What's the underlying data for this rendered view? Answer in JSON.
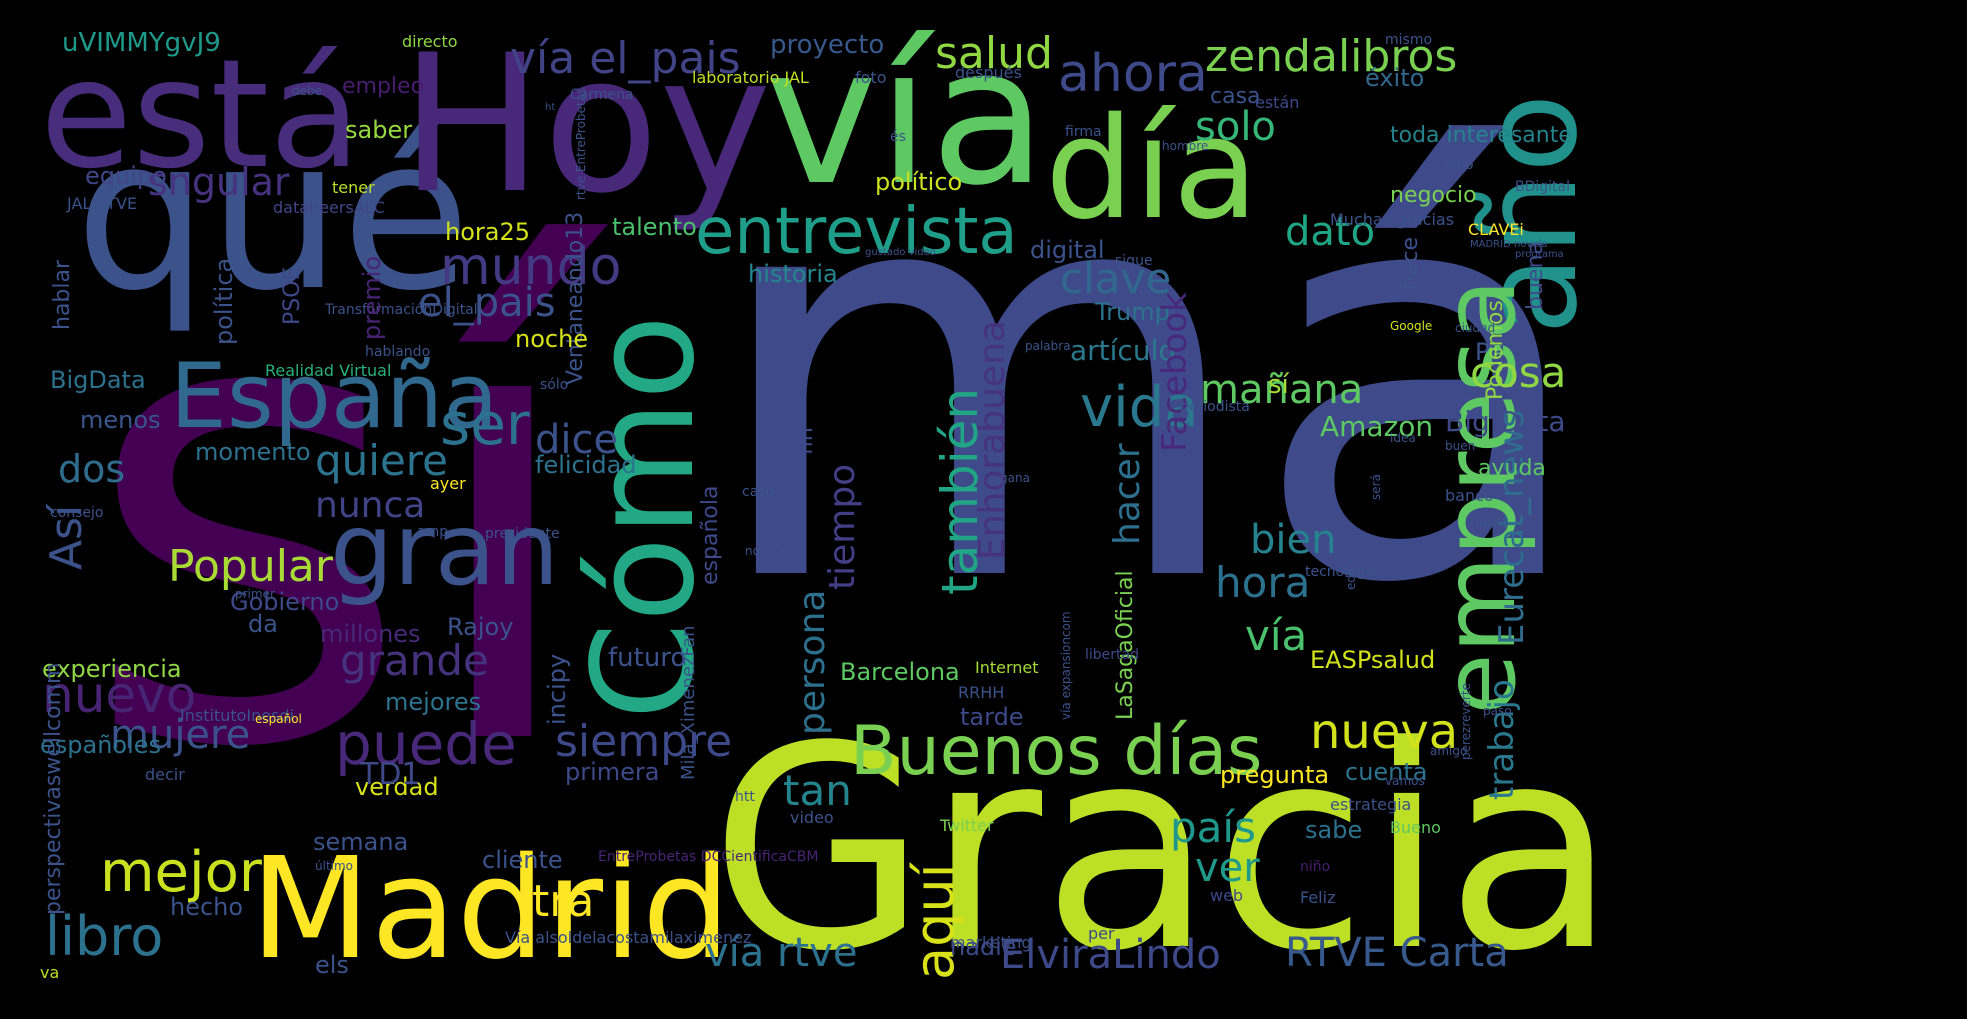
{
  "words": [
    {
      "t": "má",
      "c": "#3e4a89"
    },
    {
      "t": "sí",
      "c": "#440154"
    },
    {
      "t": "Gracia",
      "c": "#bddf26"
    },
    {
      "t": "qué",
      "c": "#3b528b"
    },
    {
      "t": "Hoy",
      "c": "#482878"
    },
    {
      "t": "vía",
      "c": "#5ec962"
    },
    {
      "t": "está",
      "c": "#472d7b"
    },
    {
      "t": "día",
      "c": "#7ad151"
    },
    {
      "t": "año",
      "c": "#21918c"
    },
    {
      "t": "Cómo",
      "c": "#22a884"
    },
    {
      "t": "Madrid",
      "c": "#fde725"
    },
    {
      "t": "empresa",
      "c": "#5ec962"
    },
    {
      "t": "España",
      "c": "#31688e"
    },
    {
      "t": "gran",
      "c": "#3b528b"
    },
    {
      "t": "Buenos días",
      "c": "#7ad151"
    },
    {
      "t": "entrevista",
      "c": "#1f9e89"
    },
    {
      "t": "ahora",
      "c": "#3e4a89"
    },
    {
      "t": "vía el_pais",
      "c": "#414487"
    },
    {
      "t": "zendalibros",
      "c": "#7ad151"
    },
    {
      "t": "salud",
      "c": "#90d743"
    },
    {
      "t": "solo",
      "c": "#35b779"
    },
    {
      "t": "mundo",
      "c": "#443983"
    },
    {
      "t": "sngular",
      "c": "#46327e"
    },
    {
      "t": "ser",
      "c": "#2c728e"
    },
    {
      "t": "vida",
      "c": "#2a788e"
    },
    {
      "t": "mañana",
      "c": "#5ec962"
    },
    {
      "t": "dato",
      "c": "#21a685"
    },
    {
      "t": "clave",
      "c": "#31688e"
    },
    {
      "t": "el_pais",
      "c": "#3b528b"
    },
    {
      "t": "nuevo",
      "c": "#482475"
    },
    {
      "t": "puede",
      "c": "#482878"
    },
    {
      "t": "mejor",
      "c": "#cae11f"
    },
    {
      "t": "libro",
      "c": "#2c728e"
    },
    {
      "t": "nueva",
      "c": "#d2e21b"
    },
    {
      "t": "Popular",
      "c": "#a8db34"
    },
    {
      "t": "grande",
      "c": "#46337e"
    },
    {
      "t": "siempre",
      "c": "#3e4989"
    },
    {
      "t": "tra",
      "c": "#fde725"
    },
    {
      "t": "quiere",
      "c": "#2c738e"
    },
    {
      "t": "dice",
      "c": "#3b528b"
    },
    {
      "t": "nunca",
      "c": "#414487"
    },
    {
      "t": "mujere",
      "c": "#3b528b"
    },
    {
      "t": "bien",
      "c": "#26828e"
    },
    {
      "t": "hora",
      "c": "#2c728e"
    },
    {
      "t": "vía",
      "c": "#4ac16d"
    },
    {
      "t": "país",
      "c": "#1f988b"
    },
    {
      "t": "ver",
      "c": "#1f9a8a"
    },
    {
      "t": "tan",
      "c": "#25858e"
    },
    {
      "t": "cosa",
      "c": "#90d743"
    },
    {
      "t": "vía rtve",
      "c": "#2c728e"
    },
    {
      "t": "RTVE Carta",
      "c": "#38598c"
    },
    {
      "t": "ElviraLindo",
      "c": "#3e4989"
    },
    {
      "t": "aquí",
      "c": "#d8e219"
    },
    {
      "t": "también",
      "c": "#21a685"
    },
    {
      "t": "hacer",
      "c": "#2d708e"
    },
    {
      "t": "Enhorabuena",
      "c": "#46337e"
    },
    {
      "t": "persona",
      "c": "#2d708e"
    },
    {
      "t": "tiempo",
      "c": "#433e85"
    },
    {
      "t": "trabajo",
      "c": "#2a788e"
    },
    {
      "t": "Eurecat_news",
      "c": "#2f6c8e"
    },
    {
      "t": "Así",
      "c": "#3b528b"
    },
    {
      "t": "dos",
      "c": "#2f6c8e"
    },
    {
      "t": "proyecto",
      "c": "#38598c"
    },
    {
      "t": "uVIMMYgvJ9",
      "c": "#1f9a8a"
    },
    {
      "t": "directo",
      "c": "#90d743"
    },
    {
      "t": "empleo",
      "c": "#481d6f"
    },
    {
      "t": "saber",
      "c": "#95d840"
    },
    {
      "t": "equipo",
      "c": "#404688"
    },
    {
      "t": "JAL RTVE",
      "c": "#3b528b"
    },
    {
      "t": "databeersALC",
      "c": "#404688"
    },
    {
      "t": "tener",
      "c": "#bddf26"
    },
    {
      "t": "política",
      "c": "#3b528b"
    },
    {
      "t": "PSOE",
      "c": "#3e4989"
    },
    {
      "t": "premio",
      "c": "#482475"
    },
    {
      "t": "BigData",
      "c": "#2c728e"
    },
    {
      "t": "hablar",
      "c": "#3b528b"
    },
    {
      "t": "menos",
      "c": "#39568c"
    },
    {
      "t": "momento",
      "c": "#2c728e"
    },
    {
      "t": "consejo",
      "c": "#3b528b"
    },
    {
      "t": "Realidad Virtual",
      "c": "#29af7f"
    },
    {
      "t": "hora25",
      "c": "#d2e21b"
    },
    {
      "t": "talento",
      "c": "#4ac16d"
    },
    {
      "t": "historia",
      "c": "#24868e"
    },
    {
      "t": "incipy",
      "c": "#d8e219"
    },
    {
      "t": "Ventaneando13",
      "c": "#2c738e"
    },
    {
      "t": "noche",
      "c": "#cae11f"
    },
    {
      "t": "felicidad",
      "c": "#c2df23"
    },
    {
      "t": "político",
      "c": "#3b528b"
    },
    {
      "t": "laboratorio JAL",
      "c": "#3b528b"
    },
    {
      "t": "foto",
      "c": "#3b528b"
    },
    {
      "t": "después",
      "c": "#3e4989"
    },
    {
      "t": "casa",
      "c": "#31688e"
    },
    {
      "t": "están",
      "c": "#25838e"
    },
    {
      "t": "éxito",
      "c": "#7ad151"
    },
    {
      "t": "toda interesante",
      "c": "#3b528b"
    },
    {
      "t": "negocio",
      "c": "#2c728e"
    },
    {
      "t": "digital",
      "c": "#2a788e"
    },
    {
      "t": "Trump",
      "c": "#a5db36"
    },
    {
      "t": "artículo",
      "c": "#5ec962"
    },
    {
      "t": "sí",
      "c": "#482878"
    },
    {
      "t": "Amazon",
      "c": "#3b528b"
    },
    {
      "t": "Facebook",
      "c": "#3e4a89"
    },
    {
      "t": "PP",
      "c": "#5ec962"
    },
    {
      "t": "Big Data",
      "c": "#fde725"
    },
    {
      "t": "ayuda",
      "c": "#3b528b"
    },
    {
      "t": "CLAVEi",
      "c": "#3b528b"
    },
    {
      "t": "Muchas gracias",
      "c": "#3e4a89"
    },
    {
      "t": "hace",
      "c": "#90d743"
    },
    {
      "t": "buena",
      "c": "#d2e21b"
    },
    {
      "t": "Podemos",
      "c": "#2c728e"
    },
    {
      "t": "EASPsalud",
      "c": "#fde725"
    },
    {
      "t": "cuenta",
      "c": "#2c728e"
    },
    {
      "t": "pregunta",
      "c": "#3b528b"
    },
    {
      "t": "sabe",
      "c": "#5ec962"
    },
    {
      "t": "estrategia",
      "c": "#3e4989"
    },
    {
      "t": "Bueno",
      "c": "#3b528b"
    },
    {
      "t": "web",
      "c": "#481d6f"
    },
    {
      "t": "Feliz",
      "c": "#3e4989"
    },
    {
      "t": "niño",
      "c": "#3b528b"
    },
    {
      "t": "per",
      "c": "#3e4989"
    },
    {
      "t": "marketing",
      "c": "#7ad151"
    },
    {
      "t": "nadie",
      "c": "#3b528b"
    },
    {
      "t": "Twitter",
      "c": "#3e4989"
    },
    {
      "t": "video",
      "c": "#3b528b"
    },
    {
      "t": "Gobierno",
      "c": "#482878"
    },
    {
      "t": "da",
      "c": "#3b528b"
    },
    {
      "t": "millones",
      "c": "#2c728e"
    },
    {
      "t": "Rajoy",
      "c": "#3b528b"
    },
    {
      "t": "mejores",
      "c": "#3e4989"
    },
    {
      "t": "futuro",
      "c": "#d8e219"
    },
    {
      "t": "primera",
      "c": "#3b528b"
    },
    {
      "t": "verdad",
      "c": "#3b528b"
    },
    {
      "t": "semana",
      "c": "#3b528b"
    },
    {
      "t": "cliente",
      "c": "#90d743"
    },
    {
      "t": "hecho",
      "c": "#2c728e"
    },
    {
      "t": "experiencia",
      "c": "#3b528b"
    },
    {
      "t": "españoles",
      "c": "#3b528b"
    },
    {
      "t": "decir",
      "c": "#3b528b"
    },
    {
      "t": "perspectivaswellcomm",
      "c": "#fde725"
    },
    {
      "t": "InstitutoInesdi",
      "c": "#3b528b"
    },
    {
      "t": "español",
      "c": "#482475"
    },
    {
      "t": "último",
      "c": "#3b528b"
    },
    {
      "t": "EntreProbetas DCCientificaCBM",
      "c": "#bddf26"
    },
    {
      "t": "Vía alsoldelacostamilaximenez",
      "c": "#3b528b"
    },
    {
      "t": "va",
      "c": "#3e4989"
    },
    {
      "t": "els",
      "c": "#5ec962"
    },
    {
      "t": "TD1",
      "c": "#3e4989"
    },
    {
      "t": "Barcelona",
      "c": "#3b528b"
    },
    {
      "t": "tarde",
      "c": "#a5db36"
    },
    {
      "t": "RRHH",
      "c": "#3e4989"
    },
    {
      "t": "Internet",
      "c": "#3b528b"
    },
    {
      "t": "libertad",
      "c": "#3b528b"
    },
    {
      "t": "tecnología",
      "c": "#3b528b"
    },
    {
      "t": "banco",
      "c": "#3b528b"
    },
    {
      "t": "buen",
      "c": "#3b528b"
    },
    {
      "t": "ciudad",
      "c": "#3b528b"
    },
    {
      "t": "habla",
      "c": "#3b528b"
    },
    {
      "t": "amigo",
      "c": "#3b528b"
    },
    {
      "t": "vamos",
      "c": "#3b528b"
    },
    {
      "t": "idea",
      "c": "#3b528b"
    },
    {
      "t": "paso",
      "c": "#3b528b"
    },
    {
      "t": "periodista",
      "c": "#d2e21b"
    },
    {
      "t": "gana",
      "c": "#3b528b"
    },
    {
      "t": "Google",
      "c": "#3e4989"
    },
    {
      "t": "palabra",
      "c": "#3b528b"
    },
    {
      "t": "blog",
      "c": "#3b528b"
    },
    {
      "t": "noticia",
      "c": "#3b528b"
    },
    {
      "t": "caso",
      "c": "#3b528b"
    },
    {
      "t": "presidente",
      "c": "#fde725"
    },
    {
      "t": "amp",
      "c": "#3b528b"
    },
    {
      "t": "ayer",
      "c": "#3b528b"
    },
    {
      "t": "primer",
      "c": "#3b528b"
    },
    {
      "t": "hablando",
      "c": "#3b528b"
    },
    {
      "t": "TransformaciónDigital",
      "c": "#3b528b"
    },
    {
      "t": "sólo",
      "c": "#3b528b"
    },
    {
      "t": "gustado video",
      "c": "#3b528b"
    },
    {
      "t": "sigue",
      "c": "#3b528b"
    },
    {
      "t": "hombre",
      "c": "#3b528b"
    },
    {
      "t": "firma",
      "c": "#3b528b"
    },
    {
      "t": "és",
      "c": "#3b528b"
    },
    {
      "t": "ht",
      "c": "#3b528b"
    },
    {
      "t": "Carmena",
      "c": "#3b528b"
    },
    {
      "t": "debe",
      "c": "#3b528b"
    },
    {
      "t": "mismo",
      "c": "#3b528b"
    },
    {
      "t": "sino",
      "c": "#3b528b"
    },
    {
      "t": "española",
      "c": "#3b528b"
    },
    {
      "t": "fin",
      "c": "#3b528b"
    },
    {
      "t": "LaSagaOficial",
      "c": "#3b528b"
    },
    {
      "t": "BDigital",
      "c": "#3b528b"
    },
    {
      "t": "MADRID novela",
      "c": "#3e4989"
    },
    {
      "t": "programa",
      "c": "#3e4989"
    },
    {
      "t": "Mila_XimenezFan",
      "c": "#7ad151"
    },
    {
      "t": "rtve EntreProbetas",
      "c": "#3b528b"
    },
    {
      "t": "edición",
      "c": "#3b528b"
    },
    {
      "t": "será",
      "c": "#3b528b"
    },
    {
      "t": "vía expansioncom",
      "c": "#3b528b"
    },
    {
      "t": "perezreverte",
      "c": "#3b528b"
    },
    {
      "t": "htt",
      "c": "#3b528b"
    }
  ]
}
